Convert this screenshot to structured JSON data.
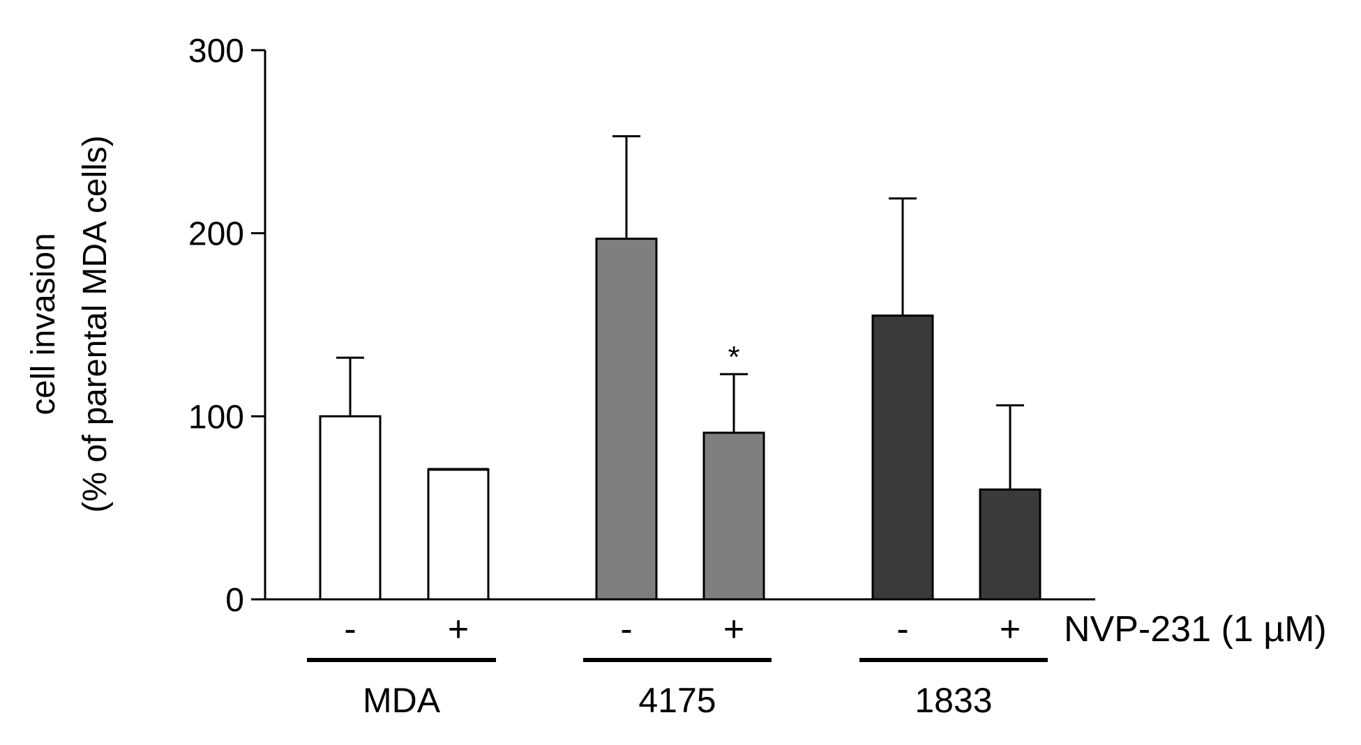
{
  "chart_data": {
    "type": "bar",
    "ylabel_line1": "cell invasion",
    "ylabel_line2": "(% of parental MDA cells)",
    "ylim": [
      0,
      300
    ],
    "yticks": [
      "0",
      "100",
      "200",
      "300"
    ],
    "treatment_label": "NVP-231 (1 µM)",
    "groups": [
      "MDA",
      "4175",
      "1833"
    ],
    "categories": [
      "-",
      "+",
      "-",
      "+",
      "-",
      "+"
    ],
    "bars": [
      {
        "group": "MDA",
        "treatment": "-",
        "value": 100,
        "error": 32,
        "color": "#ffffff",
        "annotation": ""
      },
      {
        "group": "MDA",
        "treatment": "+",
        "value": 71,
        "error": 0.5,
        "color": "#ffffff",
        "annotation": ""
      },
      {
        "group": "4175",
        "treatment": "-",
        "value": 197,
        "error": 56,
        "color": "#7f7f7f",
        "annotation": ""
      },
      {
        "group": "4175",
        "treatment": "+",
        "value": 91,
        "error": 32,
        "color": "#7f7f7f",
        "annotation": "*"
      },
      {
        "group": "1833",
        "treatment": "-",
        "value": 155,
        "error": 64,
        "color": "#3a3a3a",
        "annotation": ""
      },
      {
        "group": "1833",
        "treatment": "+",
        "value": 60,
        "error": 46,
        "color": "#3a3a3a",
        "annotation": ""
      }
    ],
    "grid": false,
    "legend": "none"
  }
}
